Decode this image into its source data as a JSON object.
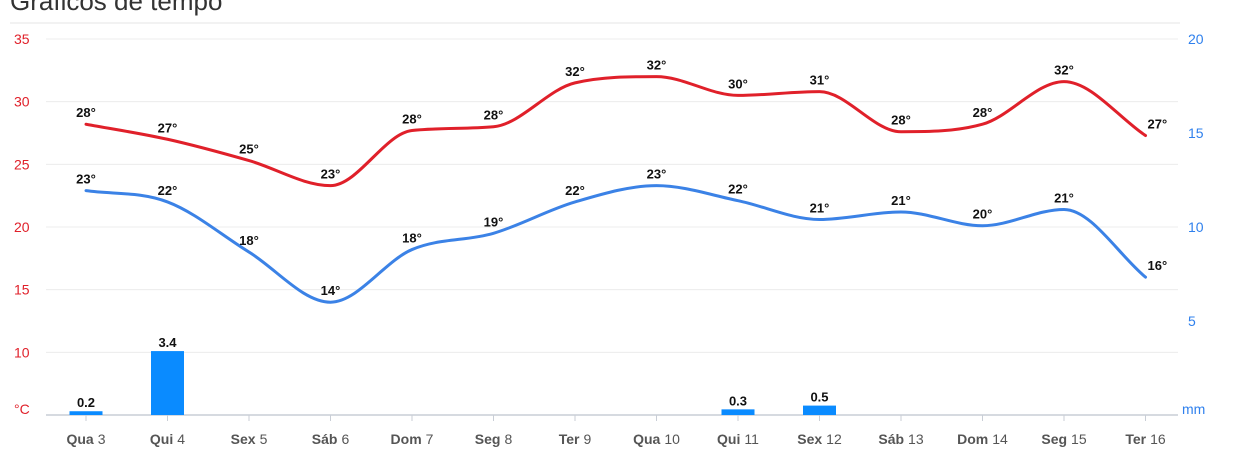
{
  "page": {
    "title": "Gráficos de tempo"
  },
  "chart_data": {
    "type": "line",
    "categories": [
      {
        "day": "Qua",
        "num": "3"
      },
      {
        "day": "Qui",
        "num": "4"
      },
      {
        "day": "Sex",
        "num": "5"
      },
      {
        "day": "Sáb",
        "num": "6"
      },
      {
        "day": "Dom",
        "num": "7"
      },
      {
        "day": "Seg",
        "num": "8"
      },
      {
        "day": "Ter",
        "num": "9"
      },
      {
        "day": "Qua",
        "num": "10"
      },
      {
        "day": "Qui",
        "num": "11"
      },
      {
        "day": "Sex",
        "num": "12"
      },
      {
        "day": "Sáb",
        "num": "13"
      },
      {
        "day": "Dom",
        "num": "14"
      },
      {
        "day": "Seg",
        "num": "15"
      },
      {
        "day": "Ter",
        "num": "16"
      }
    ],
    "series": [
      {
        "type": "line",
        "axis": "left",
        "color": "#e0202a",
        "values": [
          28.2,
          27,
          25.3,
          23.3,
          27.7,
          28,
          31.5,
          32,
          30.5,
          30.8,
          27.6,
          28.2,
          31.6,
          27.3
        ],
        "labels": [
          "28°",
          "27°",
          "25°",
          "23°",
          "28°",
          "28°",
          "32°",
          "32°",
          "30°",
          "31°",
          "28°",
          "28°",
          "32°",
          "27°"
        ]
      },
      {
        "type": "line",
        "axis": "left",
        "color": "#3b82e6",
        "values": [
          22.9,
          22,
          18,
          14,
          18.2,
          19.5,
          22,
          23.3,
          22.1,
          20.6,
          21.2,
          20.1,
          21.4,
          16
        ],
        "labels": [
          "23°",
          "22°",
          "18°",
          "14°",
          "18°",
          "19°",
          "22°",
          "23°",
          "22°",
          "21°",
          "21°",
          "20°",
          "21°",
          "16°"
        ]
      },
      {
        "type": "bar",
        "axis": "right",
        "color": "#0a8bff",
        "values": [
          0.2,
          3.4,
          null,
          null,
          null,
          null,
          null,
          null,
          0.3,
          0.5,
          null,
          null,
          null,
          null
        ],
        "labels": [
          "0.2",
          "3.4",
          "",
          "",
          "",
          "",
          "",
          "",
          "0.3",
          "0.5",
          "",
          "",
          "",
          ""
        ]
      }
    ],
    "y_left": {
      "unit": "°C",
      "min": 5,
      "max": 35,
      "ticks": [
        10,
        15,
        20,
        25,
        30,
        35
      ]
    },
    "y_right": {
      "unit": "mm",
      "min": 0,
      "max": 20,
      "ticks": [
        5,
        10,
        15,
        20
      ]
    },
    "grid": true,
    "legend": "none"
  }
}
